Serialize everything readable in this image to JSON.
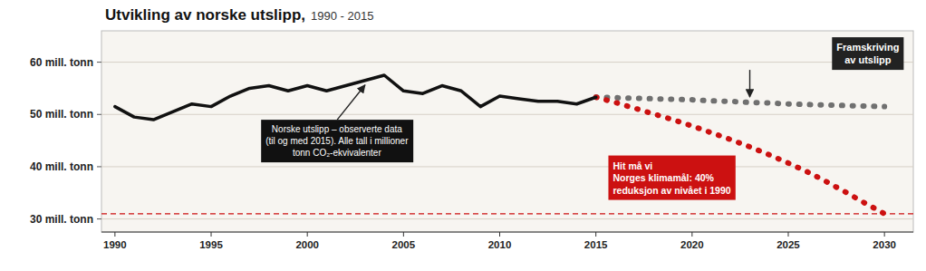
{
  "chart_data": {
    "type": "line",
    "title": "Utvikling av norske utslipp,",
    "subtitle": "1990 - 2015",
    "xlim": [
      1989.3,
      2031.5
    ],
    "ylim": [
      27.5,
      66
    ],
    "xticks": [
      1990,
      1995,
      2000,
      2005,
      2010,
      2015,
      2020,
      2025,
      2030
    ],
    "yticks": [
      {
        "value": 60,
        "label": "60 mill. tonn"
      },
      {
        "value": 50,
        "label": "50 mill. tonn"
      },
      {
        "value": 40,
        "label": "40 mill. tonn"
      },
      {
        "value": 30,
        "label": "30 mill. tonn"
      }
    ],
    "grid": true,
    "series": [
      {
        "x": [
          1990,
          1991,
          1992,
          1993,
          1994,
          1995,
          1996,
          1997,
          1998,
          1999,
          2000,
          2001,
          2002,
          2003,
          2004,
          2005,
          2006,
          2007,
          2008,
          2009,
          2010,
          2011,
          2012,
          2013,
          2014,
          2015
        ],
        "values": [
          51.5,
          49.5,
          49.0,
          50.5,
          52.0,
          51.5,
          53.5,
          55.0,
          55.5,
          54.5,
          55.5,
          54.5,
          55.5,
          56.5,
          57.5,
          54.5,
          54.0,
          55.5,
          54.5,
          51.5,
          53.5,
          53.0,
          52.5,
          52.5,
          52.0,
          53.3
        ],
        "color": "#111111",
        "line_style": "solid"
      },
      {
        "x": [
          2015,
          2016,
          2017,
          2018,
          2019,
          2020,
          2021,
          2022,
          2023,
          2024,
          2025,
          2026,
          2027,
          2028,
          2029,
          2030
        ],
        "values": [
          53.3,
          53.2,
          53.1,
          53.0,
          52.9,
          52.8,
          52.6,
          52.5,
          52.3,
          52.2,
          52.0,
          51.9,
          51.8,
          51.7,
          51.6,
          51.5
        ],
        "color": "#707070",
        "line_style": "dashed"
      },
      {
        "x": [
          2015,
          2016,
          2017,
          2018,
          2019,
          2020,
          2021,
          2022,
          2023,
          2024,
          2025,
          2026,
          2027,
          2028,
          2029,
          2030
        ],
        "values": [
          53.3,
          52.3,
          51.2,
          50.1,
          49.0,
          47.8,
          46.5,
          45.2,
          43.8,
          42.3,
          40.7,
          39.0,
          37.1,
          35.1,
          33.0,
          31.0
        ],
        "color": "#cc1111",
        "line_style": "dashed"
      }
    ],
    "reference_lines": [
      {
        "y": 31.0,
        "color": "#cc1111",
        "line_style": "dashed"
      }
    ],
    "annotations": [
      "Norske utslipp – observerte data\n(til og med 2015). Alle tall i millioner\ntonn CO₂-ekvivalenter",
      "Framskriving\nav utslipp",
      "Hit må vi\nNorges klimamål: 40%\nreduksjon av nivået i 1990"
    ]
  }
}
